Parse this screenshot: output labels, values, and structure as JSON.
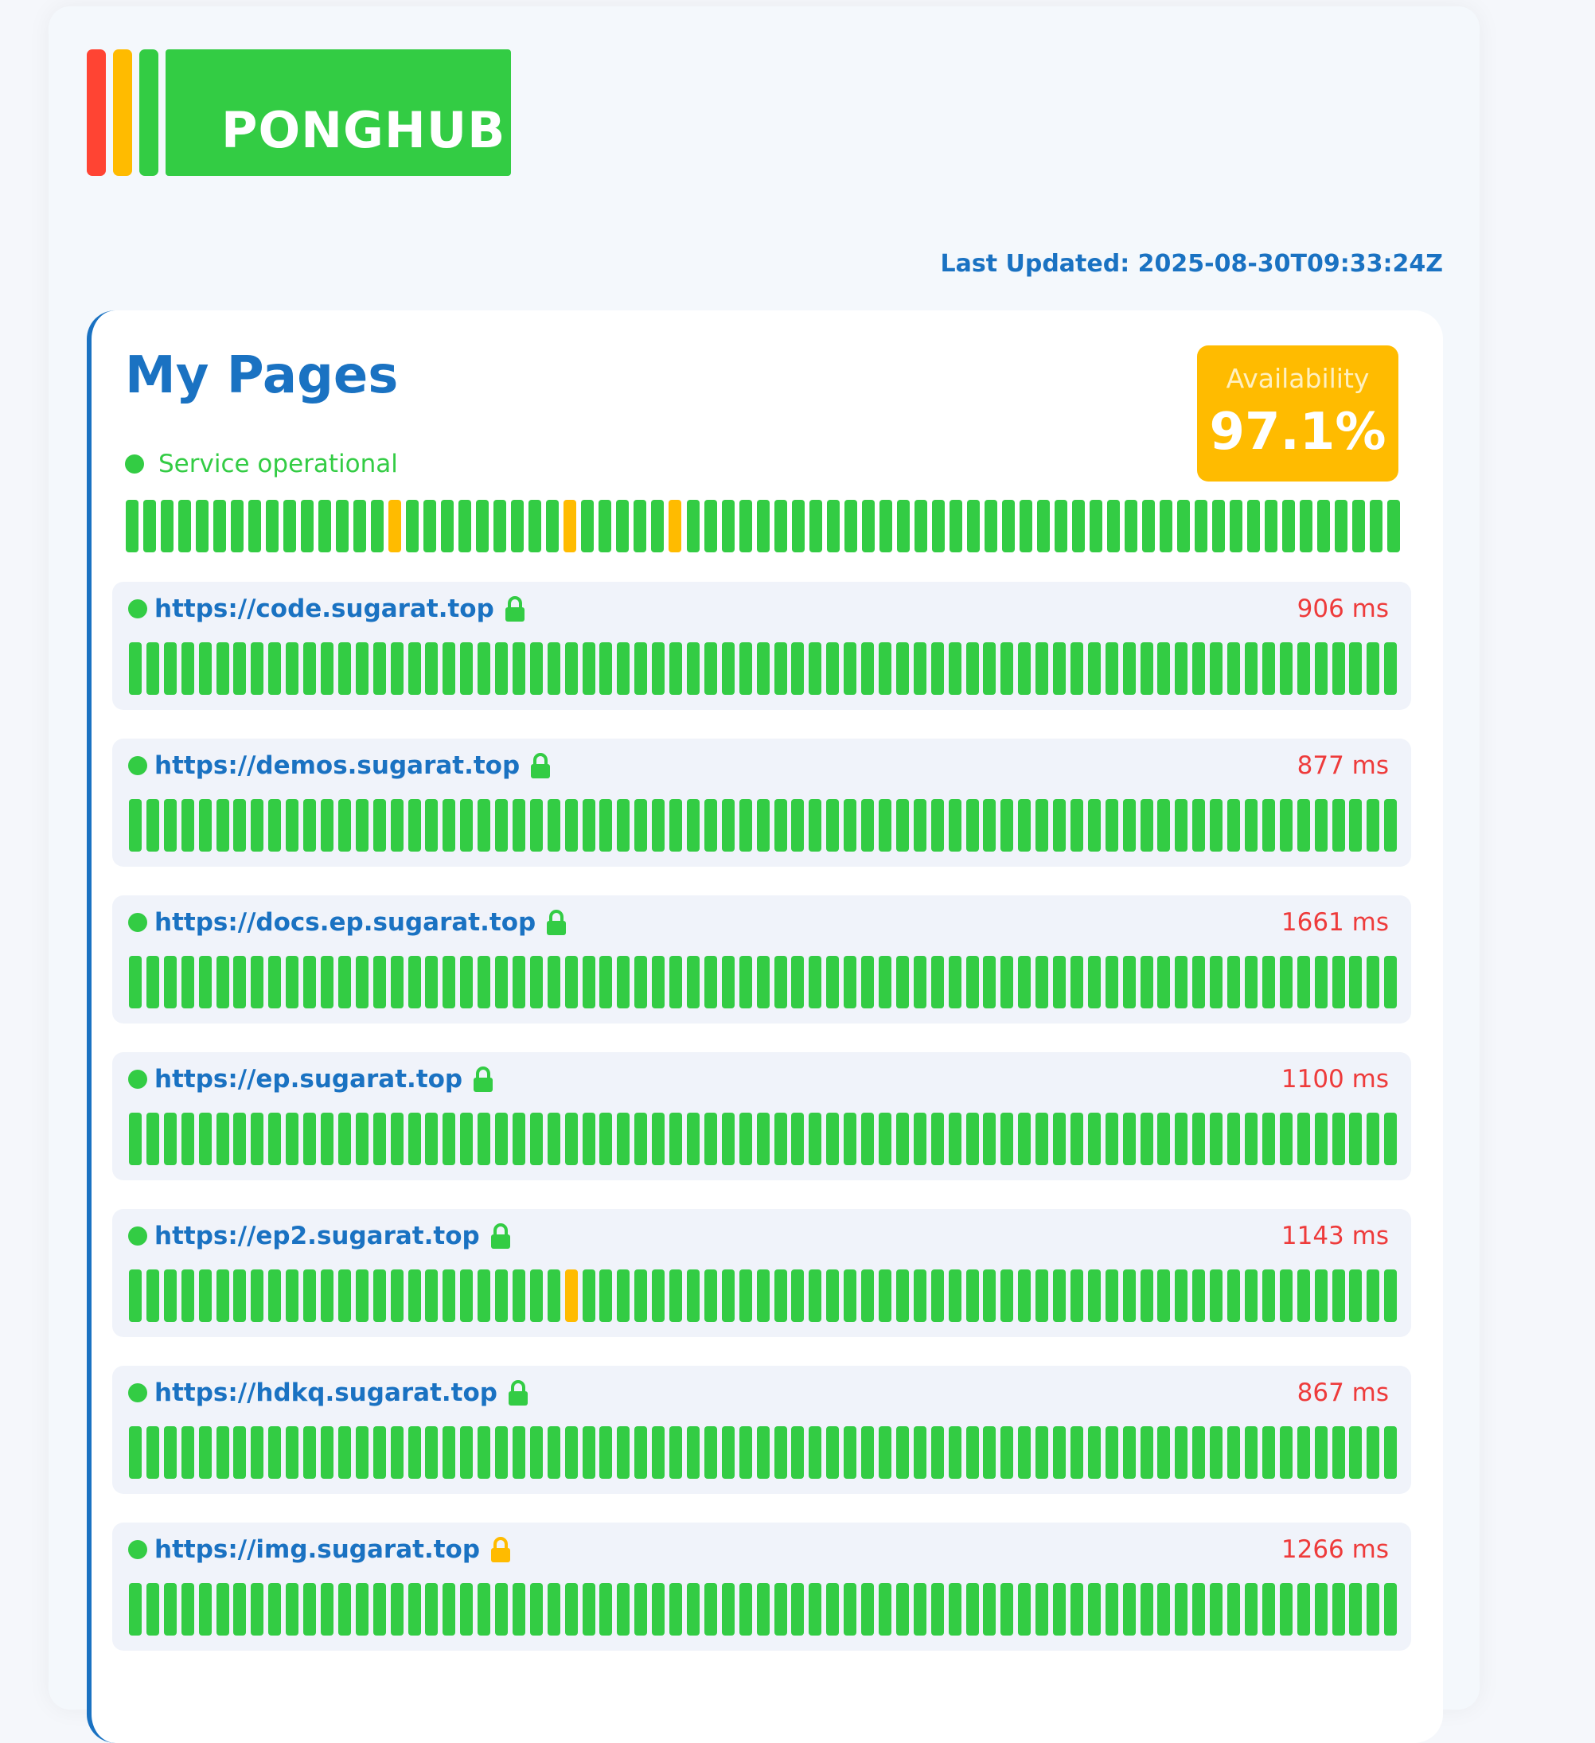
{
  "brand": {
    "logo_text": "PONGHUB",
    "stripe_colors": [
      "#ff4433",
      "#ffbb00",
      "#33cc44"
    ]
  },
  "last_updated": "Last Updated: 2025-08-30T09:33:24Z",
  "group": {
    "title": "My Pages",
    "status_text": "Service operational",
    "availability_label": "Availability",
    "availability_value": "97.1%",
    "history": "gggggggggggggggwgggggggggwgggggwggggggggggggggggggggggggggggggggggggggggg"
  },
  "endpoints": [
    {
      "url": "https://code.sugarat.top",
      "latency": "906 ms",
      "lock_icon": "lock-icon",
      "lock_color": "#33cc44",
      "history": "ggggggggggggggggggggggggggggggggggggggggggggggggggggggggggggggggggggggggg"
    },
    {
      "url": "https://demos.sugarat.top",
      "latency": "877 ms",
      "lock_icon": "lock-icon",
      "lock_color": "#33cc44",
      "history": "ggggggggggggggggggggggggggggggggggggggggggggggggggggggggggggggggggggggggg"
    },
    {
      "url": "https://docs.ep.sugarat.top",
      "latency": "1661 ms",
      "lock_icon": "lock-icon",
      "lock_color": "#33cc44",
      "history": "ggggggggggggggggggggggggggggggggggggggggggggggggggggggggggggggggggggggggg"
    },
    {
      "url": "https://ep.sugarat.top",
      "latency": "1100 ms",
      "lock_icon": "lock-icon",
      "lock_color": "#33cc44",
      "history": "ggggggggggggggggggggggggggggggggggggggggggggggggggggggggggggggggggggggggg"
    },
    {
      "url": "https://ep2.sugarat.top",
      "latency": "1143 ms",
      "lock_icon": "lock-icon",
      "lock_color": "#33cc44",
      "history": "gggggggggggggggggggggggggwggggggggggggggggggggggggggggggggggggggggggggggg"
    },
    {
      "url": "https://hdkq.sugarat.top",
      "latency": "867 ms",
      "lock_icon": "lock-icon",
      "lock_color": "#33cc44",
      "history": "ggggggggggggggggggggggggggggggggggggggggggggggggggggggggggggggggggggggggg"
    },
    {
      "url": "https://img.sugarat.top",
      "latency": "1266 ms",
      "lock_icon": "lock-icon",
      "lock_color": "#ffbb00",
      "history": "ggggggggggggggggggggggggggggggggggggggggggggggggggggggggggggggggggggggggg"
    }
  ],
  "colors": {
    "accent": "#1a72c2",
    "operational": "#33cc44",
    "warning": "#ffbb00",
    "latency_text": "#ee3b3b"
  }
}
